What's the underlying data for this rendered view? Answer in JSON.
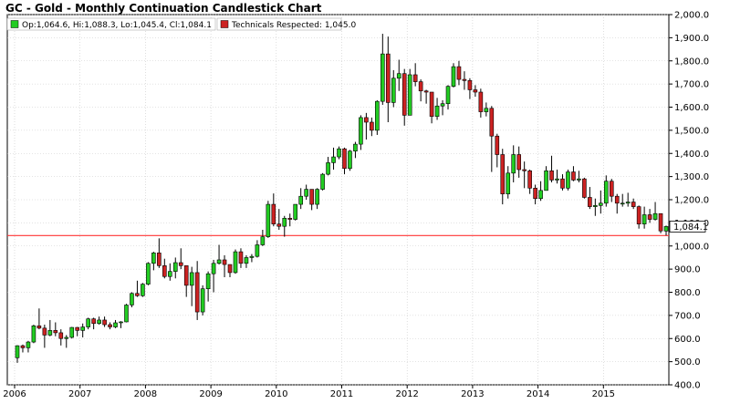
{
  "title": "GC - Gold - Monthly Continuation Candlestick Chart",
  "legend": {
    "ohlc_text": "Op:1,064.6, Hi:1,088.3, Lo:1,045.4, Cl:1,084.1",
    "ohlc_color": "#22cc22",
    "technicals_text": "Technicals Respected: 1,045.0",
    "technicals_color": "#cc2222"
  },
  "last_price_label": "1,084.1",
  "chart_data": {
    "type": "candlestick",
    "title": "GC - Gold - Monthly Continuation Candlestick Chart",
    "ylim": [
      400,
      2000
    ],
    "y_ticks": [
      "400.0",
      "500.0",
      "600.0",
      "700.0",
      "800.0",
      "900.0",
      "1,000.0",
      "1,100.0",
      "1,200.0",
      "1,300.0",
      "1,400.0",
      "1,500.0",
      "1,600.0",
      "1,700.0",
      "1,800.0",
      "1,900.0",
      "2,000.0"
    ],
    "y_tick_values": [
      400,
      500,
      600,
      700,
      800,
      900,
      1000,
      1100,
      1200,
      1300,
      1400,
      1500,
      1600,
      1700,
      1800,
      1900,
      2000
    ],
    "x_ticks": [
      "2006",
      "2007",
      "2008",
      "2009",
      "2010",
      "2011",
      "2012",
      "2013",
      "2014",
      "2015"
    ],
    "grid": true,
    "up_color": "#22cc22",
    "down_color": "#cc2222",
    "reference_line": {
      "name": "Technicals Respected",
      "value": 1045.0,
      "color": "#ff3333"
    },
    "last_close": 1084.1,
    "series": [
      {
        "t": "2006-01",
        "o": 517,
        "h": 571,
        "l": 495,
        "c": 569
      },
      {
        "t": "2006-02",
        "o": 569,
        "h": 574,
        "l": 540,
        "c": 560
      },
      {
        "t": "2006-03",
        "o": 560,
        "h": 590,
        "l": 540,
        "c": 585
      },
      {
        "t": "2006-04",
        "o": 585,
        "h": 660,
        "l": 580,
        "c": 655
      },
      {
        "t": "2006-05",
        "o": 655,
        "h": 730,
        "l": 640,
        "c": 645
      },
      {
        "t": "2006-06",
        "o": 645,
        "h": 660,
        "l": 560,
        "c": 615
      },
      {
        "t": "2006-07",
        "o": 615,
        "h": 680,
        "l": 610,
        "c": 635
      },
      {
        "t": "2006-08",
        "o": 635,
        "h": 670,
        "l": 610,
        "c": 625
      },
      {
        "t": "2006-09",
        "o": 625,
        "h": 640,
        "l": 570,
        "c": 600
      },
      {
        "t": "2006-10",
        "o": 600,
        "h": 615,
        "l": 560,
        "c": 605
      },
      {
        "t": "2006-11",
        "o": 605,
        "h": 650,
        "l": 600,
        "c": 648
      },
      {
        "t": "2006-12",
        "o": 648,
        "h": 650,
        "l": 610,
        "c": 635
      },
      {
        "t": "2007-01",
        "o": 635,
        "h": 665,
        "l": 605,
        "c": 650
      },
      {
        "t": "2007-02",
        "o": 650,
        "h": 690,
        "l": 640,
        "c": 685
      },
      {
        "t": "2007-03",
        "o": 685,
        "h": 690,
        "l": 640,
        "c": 665
      },
      {
        "t": "2007-04",
        "o": 665,
        "h": 695,
        "l": 660,
        "c": 680
      },
      {
        "t": "2007-05",
        "o": 680,
        "h": 695,
        "l": 650,
        "c": 660
      },
      {
        "t": "2007-06",
        "o": 660,
        "h": 670,
        "l": 640,
        "c": 650
      },
      {
        "t": "2007-07",
        "o": 650,
        "h": 680,
        "l": 645,
        "c": 668
      },
      {
        "t": "2007-08",
        "o": 668,
        "h": 675,
        "l": 645,
        "c": 672
      },
      {
        "t": "2007-09",
        "o": 672,
        "h": 750,
        "l": 670,
        "c": 745
      },
      {
        "t": "2007-10",
        "o": 745,
        "h": 800,
        "l": 735,
        "c": 795
      },
      {
        "t": "2007-11",
        "o": 795,
        "h": 850,
        "l": 780,
        "c": 785
      },
      {
        "t": "2007-12",
        "o": 785,
        "h": 840,
        "l": 780,
        "c": 835
      },
      {
        "t": "2008-01",
        "o": 835,
        "h": 930,
        "l": 830,
        "c": 925
      },
      {
        "t": "2008-02",
        "o": 925,
        "h": 975,
        "l": 895,
        "c": 970
      },
      {
        "t": "2008-03",
        "o": 970,
        "h": 1033,
        "l": 905,
        "c": 915
      },
      {
        "t": "2008-04",
        "o": 915,
        "h": 945,
        "l": 860,
        "c": 868
      },
      {
        "t": "2008-05",
        "o": 868,
        "h": 925,
        "l": 850,
        "c": 890
      },
      {
        "t": "2008-06",
        "o": 890,
        "h": 950,
        "l": 860,
        "c": 928
      },
      {
        "t": "2008-07",
        "o": 928,
        "h": 990,
        "l": 900,
        "c": 915
      },
      {
        "t": "2008-08",
        "o": 915,
        "h": 915,
        "l": 780,
        "c": 830
      },
      {
        "t": "2008-09",
        "o": 830,
        "h": 910,
        "l": 740,
        "c": 885
      },
      {
        "t": "2008-10",
        "o": 885,
        "h": 935,
        "l": 680,
        "c": 715
      },
      {
        "t": "2008-11",
        "o": 715,
        "h": 830,
        "l": 700,
        "c": 815
      },
      {
        "t": "2008-12",
        "o": 815,
        "h": 890,
        "l": 760,
        "c": 880
      },
      {
        "t": "2009-01",
        "o": 880,
        "h": 940,
        "l": 800,
        "c": 925
      },
      {
        "t": "2009-02",
        "o": 925,
        "h": 1005,
        "l": 920,
        "c": 940
      },
      {
        "t": "2009-03",
        "o": 940,
        "h": 960,
        "l": 865,
        "c": 920
      },
      {
        "t": "2009-04",
        "o": 920,
        "h": 920,
        "l": 865,
        "c": 885
      },
      {
        "t": "2009-05",
        "o": 885,
        "h": 985,
        "l": 880,
        "c": 975
      },
      {
        "t": "2009-06",
        "o": 975,
        "h": 990,
        "l": 905,
        "c": 925
      },
      {
        "t": "2009-07",
        "o": 925,
        "h": 960,
        "l": 905,
        "c": 950
      },
      {
        "t": "2009-08",
        "o": 950,
        "h": 965,
        "l": 930,
        "c": 955
      },
      {
        "t": "2009-09",
        "o": 955,
        "h": 1025,
        "l": 950,
        "c": 1005
      },
      {
        "t": "2009-10",
        "o": 1005,
        "h": 1070,
        "l": 1000,
        "c": 1040
      },
      {
        "t": "2009-11",
        "o": 1040,
        "h": 1195,
        "l": 1035,
        "c": 1180
      },
      {
        "t": "2009-12",
        "o": 1180,
        "h": 1227,
        "l": 1085,
        "c": 1095
      },
      {
        "t": "2010-01",
        "o": 1095,
        "h": 1160,
        "l": 1070,
        "c": 1085
      },
      {
        "t": "2010-02",
        "o": 1085,
        "h": 1130,
        "l": 1040,
        "c": 1120
      },
      {
        "t": "2010-03",
        "o": 1120,
        "h": 1140,
        "l": 1085,
        "c": 1115
      },
      {
        "t": "2010-04",
        "o": 1115,
        "h": 1180,
        "l": 1110,
        "c": 1180
      },
      {
        "t": "2010-05",
        "o": 1180,
        "h": 1250,
        "l": 1160,
        "c": 1215
      },
      {
        "t": "2010-06",
        "o": 1215,
        "h": 1265,
        "l": 1200,
        "c": 1245
      },
      {
        "t": "2010-07",
        "o": 1245,
        "h": 1245,
        "l": 1155,
        "c": 1180
      },
      {
        "t": "2010-08",
        "o": 1180,
        "h": 1250,
        "l": 1160,
        "c": 1245
      },
      {
        "t": "2010-09",
        "o": 1245,
        "h": 1315,
        "l": 1240,
        "c": 1310
      },
      {
        "t": "2010-10",
        "o": 1310,
        "h": 1385,
        "l": 1305,
        "c": 1360
      },
      {
        "t": "2010-11",
        "o": 1360,
        "h": 1425,
        "l": 1330,
        "c": 1385
      },
      {
        "t": "2010-12",
        "o": 1385,
        "h": 1430,
        "l": 1375,
        "c": 1420
      },
      {
        "t": "2011-01",
        "o": 1420,
        "h": 1425,
        "l": 1310,
        "c": 1335
      },
      {
        "t": "2011-02",
        "o": 1335,
        "h": 1415,
        "l": 1325,
        "c": 1410
      },
      {
        "t": "2011-03",
        "o": 1410,
        "h": 1450,
        "l": 1380,
        "c": 1440
      },
      {
        "t": "2011-04",
        "o": 1440,
        "h": 1565,
        "l": 1415,
        "c": 1555
      },
      {
        "t": "2011-05",
        "o": 1555,
        "h": 1575,
        "l": 1460,
        "c": 1535
      },
      {
        "t": "2011-06",
        "o": 1535,
        "h": 1555,
        "l": 1475,
        "c": 1500
      },
      {
        "t": "2011-07",
        "o": 1500,
        "h": 1630,
        "l": 1480,
        "c": 1625
      },
      {
        "t": "2011-08",
        "o": 1625,
        "h": 1917,
        "l": 1610,
        "c": 1830
      },
      {
        "t": "2011-09",
        "o": 1830,
        "h": 1905,
        "l": 1535,
        "c": 1620
      },
      {
        "t": "2011-10",
        "o": 1620,
        "h": 1760,
        "l": 1600,
        "c": 1725
      },
      {
        "t": "2011-11",
        "o": 1725,
        "h": 1805,
        "l": 1670,
        "c": 1745
      },
      {
        "t": "2011-12",
        "o": 1745,
        "h": 1765,
        "l": 1520,
        "c": 1565
      },
      {
        "t": "2012-01",
        "o": 1565,
        "h": 1765,
        "l": 1565,
        "c": 1740
      },
      {
        "t": "2012-02",
        "o": 1740,
        "h": 1790,
        "l": 1690,
        "c": 1710
      },
      {
        "t": "2012-03",
        "o": 1710,
        "h": 1720,
        "l": 1625,
        "c": 1670
      },
      {
        "t": "2012-04",
        "o": 1670,
        "h": 1675,
        "l": 1615,
        "c": 1665
      },
      {
        "t": "2012-05",
        "o": 1665,
        "h": 1665,
        "l": 1530,
        "c": 1560
      },
      {
        "t": "2012-06",
        "o": 1560,
        "h": 1640,
        "l": 1545,
        "c": 1605
      },
      {
        "t": "2012-07",
        "o": 1605,
        "h": 1630,
        "l": 1565,
        "c": 1615
      },
      {
        "t": "2012-08",
        "o": 1615,
        "h": 1695,
        "l": 1590,
        "c": 1690
      },
      {
        "t": "2012-09",
        "o": 1690,
        "h": 1790,
        "l": 1685,
        "c": 1775
      },
      {
        "t": "2012-10",
        "o": 1775,
        "h": 1800,
        "l": 1695,
        "c": 1720
      },
      {
        "t": "2012-11",
        "o": 1720,
        "h": 1755,
        "l": 1675,
        "c": 1715
      },
      {
        "t": "2012-12",
        "o": 1715,
        "h": 1725,
        "l": 1635,
        "c": 1675
      },
      {
        "t": "2013-01",
        "o": 1675,
        "h": 1695,
        "l": 1645,
        "c": 1665
      },
      {
        "t": "2013-02",
        "o": 1665,
        "h": 1680,
        "l": 1555,
        "c": 1580
      },
      {
        "t": "2013-03",
        "o": 1580,
        "h": 1620,
        "l": 1560,
        "c": 1595
      },
      {
        "t": "2013-04",
        "o": 1595,
        "h": 1605,
        "l": 1320,
        "c": 1475
      },
      {
        "t": "2013-05",
        "o": 1475,
        "h": 1485,
        "l": 1340,
        "c": 1395
      },
      {
        "t": "2013-06",
        "o": 1395,
        "h": 1420,
        "l": 1180,
        "c": 1225
      },
      {
        "t": "2013-07",
        "o": 1225,
        "h": 1345,
        "l": 1205,
        "c": 1315
      },
      {
        "t": "2013-08",
        "o": 1315,
        "h": 1435,
        "l": 1275,
        "c": 1395
      },
      {
        "t": "2013-09",
        "o": 1395,
        "h": 1430,
        "l": 1295,
        "c": 1330
      },
      {
        "t": "2013-10",
        "o": 1330,
        "h": 1365,
        "l": 1250,
        "c": 1325
      },
      {
        "t": "2013-11",
        "o": 1325,
        "h": 1330,
        "l": 1225,
        "c": 1250
      },
      {
        "t": "2013-12",
        "o": 1250,
        "h": 1265,
        "l": 1180,
        "c": 1205
      },
      {
        "t": "2014-01",
        "o": 1205,
        "h": 1280,
        "l": 1195,
        "c": 1240
      },
      {
        "t": "2014-02",
        "o": 1240,
        "h": 1345,
        "l": 1240,
        "c": 1325
      },
      {
        "t": "2014-03",
        "o": 1325,
        "h": 1390,
        "l": 1275,
        "c": 1285
      },
      {
        "t": "2014-04",
        "o": 1285,
        "h": 1330,
        "l": 1270,
        "c": 1290
      },
      {
        "t": "2014-05",
        "o": 1290,
        "h": 1310,
        "l": 1240,
        "c": 1250
      },
      {
        "t": "2014-06",
        "o": 1250,
        "h": 1330,
        "l": 1240,
        "c": 1320
      },
      {
        "t": "2014-07",
        "o": 1320,
        "h": 1345,
        "l": 1280,
        "c": 1285
      },
      {
        "t": "2014-08",
        "o": 1285,
        "h": 1325,
        "l": 1275,
        "c": 1290
      },
      {
        "t": "2014-09",
        "o": 1290,
        "h": 1295,
        "l": 1205,
        "c": 1210
      },
      {
        "t": "2014-10",
        "o": 1210,
        "h": 1255,
        "l": 1160,
        "c": 1170
      },
      {
        "t": "2014-11",
        "o": 1170,
        "h": 1205,
        "l": 1130,
        "c": 1175
      },
      {
        "t": "2014-12",
        "o": 1175,
        "h": 1240,
        "l": 1140,
        "c": 1185
      },
      {
        "t": "2015-01",
        "o": 1185,
        "h": 1305,
        "l": 1170,
        "c": 1280
      },
      {
        "t": "2015-02",
        "o": 1280,
        "h": 1290,
        "l": 1190,
        "c": 1215
      },
      {
        "t": "2015-03",
        "o": 1215,
        "h": 1225,
        "l": 1140,
        "c": 1185
      },
      {
        "t": "2015-04",
        "o": 1185,
        "h": 1225,
        "l": 1170,
        "c": 1185
      },
      {
        "t": "2015-05",
        "o": 1185,
        "h": 1230,
        "l": 1170,
        "c": 1190
      },
      {
        "t": "2015-06",
        "o": 1190,
        "h": 1205,
        "l": 1160,
        "c": 1170
      },
      {
        "t": "2015-07",
        "o": 1170,
        "h": 1175,
        "l": 1075,
        "c": 1095
      },
      {
        "t": "2015-08",
        "o": 1095,
        "h": 1170,
        "l": 1075,
        "c": 1135
      },
      {
        "t": "2015-09",
        "o": 1135,
        "h": 1160,
        "l": 1100,
        "c": 1115
      },
      {
        "t": "2015-10",
        "o": 1115,
        "h": 1190,
        "l": 1110,
        "c": 1140
      },
      {
        "t": "2015-11",
        "o": 1140,
        "h": 1140,
        "l": 1055,
        "c": 1065
      },
      {
        "t": "2015-12",
        "o": 1064.6,
        "h": 1088.3,
        "l": 1045.4,
        "c": 1084.1
      }
    ]
  }
}
